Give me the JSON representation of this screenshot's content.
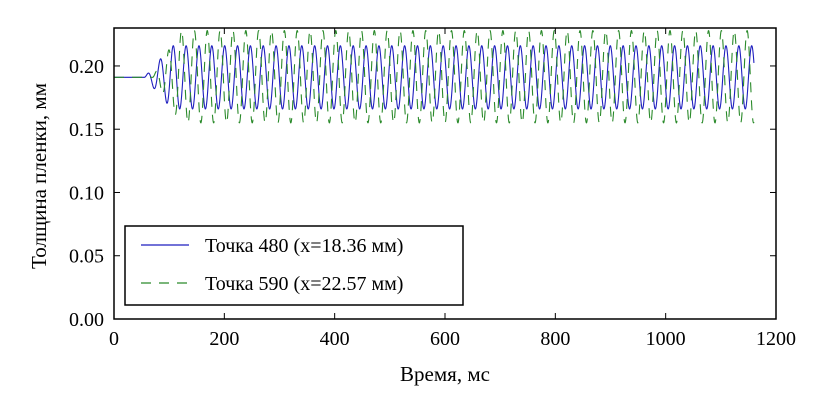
{
  "chart_data": {
    "type": "line",
    "title": "",
    "xlabel": "Время, мс",
    "ylabel": "Толщина пленки, мм",
    "xlim": [
      0,
      1200
    ],
    "ylim": [
      0.0,
      0.23
    ],
    "xticks": [
      0,
      200,
      400,
      600,
      800,
      1000,
      1200
    ],
    "yticks": [
      0.0,
      0.05,
      0.1,
      0.15,
      0.2
    ],
    "xtick_labels": [
      "0",
      "200",
      "400",
      "600",
      "800",
      "1000",
      "1200"
    ],
    "ytick_labels": [
      "0.00",
      "0.05",
      "0.10",
      "0.15",
      "0.20"
    ],
    "grid": false,
    "legend_position": "lower-left",
    "series": [
      {
        "name": "Точка 480 (x=18.36 мм)",
        "color": "#1f1fbf",
        "style": "solid",
        "x_end": 1160,
        "baseline": 0.191,
        "onset_ms": 55,
        "period_ms": 23.3,
        "min": 0.166,
        "max": 0.216
      },
      {
        "name": "Точка 590 (x=22.57 мм)",
        "color": "#2a8a2a",
        "style": "dashed",
        "x_end": 1160,
        "baseline": 0.191,
        "onset_ms": 70,
        "period_ms": 23.3,
        "min": 0.155,
        "max": 0.228
      }
    ]
  }
}
